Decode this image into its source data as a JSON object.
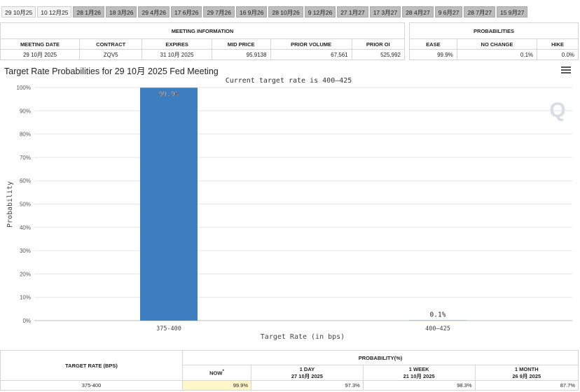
{
  "tabs": [
    "29 10月25",
    "10 12月25",
    "28 1月26",
    "18 3月26",
    "29 4月26",
    "17 6月26",
    "29 7月26",
    "16 9月26",
    "28 10月26",
    "9 12月26",
    "27 1月27",
    "17 3月27",
    "28 4月27",
    "9 6月27",
    "28 7月27",
    "15 9月27"
  ],
  "meeting_info": {
    "section_title": "MEETING INFORMATION",
    "headers": [
      "MEETING DATE",
      "CONTRACT",
      "EXPIRES",
      "MID PRICE",
      "PRIOR VOLUME",
      "PRIOR OI"
    ],
    "values": [
      "29 10月 2025",
      "ZQV5",
      "31 10月 2025",
      "95.9138",
      "67,561",
      "525,992"
    ]
  },
  "probabilities": {
    "section_title": "PROBABILITIES",
    "headers": [
      "EASE",
      "NO CHANGE",
      "HIKE"
    ],
    "values": [
      "99.9%",
      "0.1%",
      "0.0%"
    ]
  },
  "chart_data": {
    "type": "bar",
    "title": "Target Rate Probabilities for 29 10月 2025 Fed Meeting",
    "subtitle": "Current target rate is 400–425",
    "categories": [
      "375-400",
      "400–425"
    ],
    "values": [
      99.9,
      0.1
    ],
    "data_labels": [
      "99.9%",
      "0.1%"
    ],
    "xlabel": "Target Rate (in bps)",
    "ylabel": "Probability",
    "ylim": [
      0,
      100
    ],
    "yticks": [
      "0%",
      "10%",
      "20%",
      "30%",
      "40%",
      "50%",
      "60%",
      "70%",
      "80%",
      "90%",
      "100%"
    ],
    "bar_color": "#3d7ec1",
    "grid": true
  },
  "watermark": "Q",
  "bottom_table": {
    "target_rate_header": "TARGET RATE (BPS)",
    "probability_header": "PROBABILITY(%)",
    "now_label": "NOW",
    "now_mark": "*",
    "columns": [
      {
        "label": "1 DAY",
        "date": "27 10月 2025"
      },
      {
        "label": "1 WEEK",
        "date": "21 10月 2025"
      },
      {
        "label": "1 MONTH",
        "date": "26 9月 2025"
      }
    ],
    "row": {
      "rate": "375-400",
      "now": "99.9%",
      "values": [
        "97.3%",
        "98.3%",
        "87.7%"
      ]
    }
  }
}
